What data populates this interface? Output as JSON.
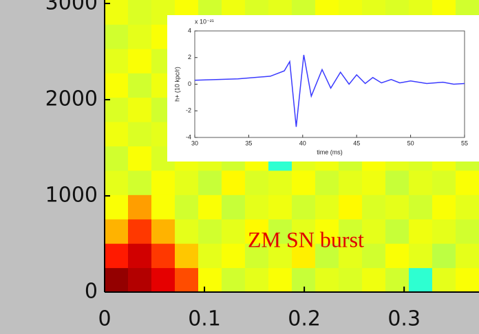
{
  "chart_data": [
    {
      "type": "heatmap",
      "colormap": "jet",
      "xlim": [
        0,
        0.375
      ],
      "ylim": [
        0,
        3036
      ],
      "xticks": [
        0,
        0.1,
        0.2,
        0.3
      ],
      "yticks": [
        0,
        1000,
        2000,
        3000
      ],
      "annotation": "ZM SN burst",
      "annotation_color": "#e00000",
      "z": [
        [
          0.98,
          0.95,
          0.9,
          0.8,
          0.62,
          0.58,
          0.6,
          0.62,
          0.57,
          0.6,
          0.59,
          0.61,
          0.58,
          0.42,
          0.6,
          0.62
        ],
        [
          0.85,
          0.92,
          0.82,
          0.68,
          0.6,
          0.62,
          0.58,
          0.6,
          0.64,
          0.57,
          0.6,
          0.58,
          0.62,
          0.6,
          0.56,
          0.6
        ],
        [
          0.7,
          0.82,
          0.7,
          0.6,
          0.58,
          0.6,
          0.63,
          0.57,
          0.6,
          0.62,
          0.58,
          0.6,
          0.57,
          0.61,
          0.6,
          0.58
        ],
        [
          0.62,
          0.72,
          0.62,
          0.58,
          0.62,
          0.57,
          0.6,
          0.61,
          0.58,
          0.6,
          0.63,
          0.59,
          0.6,
          0.58,
          0.62,
          0.6
        ],
        [
          0.6,
          0.58,
          0.62,
          0.6,
          0.57,
          0.63,
          0.59,
          0.6,
          0.62,
          0.58,
          0.6,
          0.61,
          0.57,
          0.6,
          0.59,
          0.62
        ],
        [
          0.58,
          0.62,
          0.59,
          0.61,
          0.6,
          0.58,
          0.62,
          0.42,
          0.6,
          0.61,
          0.58,
          0.62,
          0.6,
          0.59,
          0.61,
          0.58
        ],
        [
          0.61,
          0.59,
          0.6,
          0.57,
          0.62,
          0.6,
          0.58,
          0.61,
          0.59,
          0.6,
          0.62,
          0.58,
          0.61,
          0.6,
          0.57,
          0.6
        ],
        [
          0.59,
          0.61,
          0.58,
          0.62,
          0.59,
          0.61,
          0.6,
          0.58,
          0.62,
          0.59,
          0.6,
          0.61,
          0.58,
          0.62,
          0.6,
          0.59
        ],
        [
          0.62,
          0.58,
          0.61,
          0.6,
          0.58,
          0.62,
          0.59,
          0.61,
          0.6,
          0.58,
          0.61,
          0.6,
          0.62,
          0.58,
          0.6,
          0.61
        ],
        [
          0.6,
          0.62,
          0.59,
          0.58,
          0.61,
          0.6,
          0.62,
          0.58,
          0.6,
          0.61,
          0.59,
          0.62,
          0.6,
          0.58,
          0.61,
          0.6
        ],
        [
          0.58,
          0.6,
          0.62,
          0.61,
          0.59,
          0.58,
          0.6,
          0.62,
          0.61,
          0.59,
          0.6,
          0.58,
          0.62,
          0.61,
          0.59,
          0.6
        ],
        [
          0.61,
          0.59,
          0.6,
          0.62,
          0.58,
          0.61,
          0.59,
          0.6,
          0.58,
          0.62,
          0.61,
          0.6,
          0.59,
          0.6,
          0.62,
          0.58
        ]
      ]
    },
    {
      "type": "line",
      "xlabel": "time (ms)",
      "ylabel": "h+ (10 kpc/r)",
      "exponent": "x 10⁻²¹",
      "xlim": [
        30,
        55
      ],
      "ylim": [
        -4,
        4
      ],
      "xticks": [
        30,
        35,
        40,
        45,
        50,
        55
      ],
      "yticks": [
        -4,
        -2,
        0,
        2,
        4
      ],
      "series": [
        {
          "name": "h+",
          "color": "#3a3aff",
          "x": [
            30,
            34,
            37,
            38.3,
            38.8,
            39.4,
            40.1,
            40.8,
            41.8,
            42.6,
            43.5,
            44.3,
            45,
            45.8,
            46.5,
            47.3,
            48.2,
            49,
            50,
            51.5,
            53,
            54,
            55
          ],
          "values": [
            0.3,
            0.4,
            0.6,
            1.0,
            1.7,
            -3.2,
            2.2,
            -0.9,
            1.1,
            -0.3,
            0.9,
            0,
            0.7,
            0.05,
            0.5,
            0.1,
            0.35,
            0.1,
            0.25,
            0.05,
            0.15,
            0,
            0.05
          ]
        }
      ]
    }
  ]
}
